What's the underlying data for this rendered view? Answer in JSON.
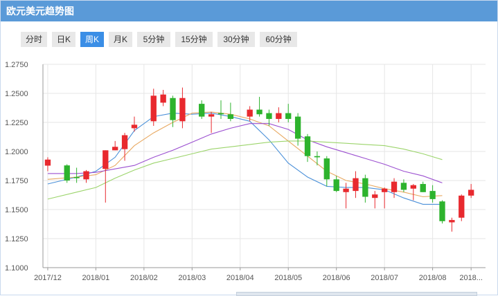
{
  "header": {
    "title": "欧元美元趋势图"
  },
  "tabs": [
    {
      "id": "fenshi",
      "label": "分时",
      "active": false
    },
    {
      "id": "rik",
      "label": "日K",
      "active": false
    },
    {
      "id": "zhouk",
      "label": "周K",
      "active": true
    },
    {
      "id": "yuek",
      "label": "月K",
      "active": false
    },
    {
      "id": "5min",
      "label": "5分钟",
      "active": false
    },
    {
      "id": "15min",
      "label": "15分钟",
      "active": false
    },
    {
      "id": "30min",
      "label": "30分钟",
      "active": false
    },
    {
      "id": "60min",
      "label": "60分钟",
      "active": false
    }
  ],
  "colors": {
    "up": "#e8292e",
    "down": "#2db32d",
    "ma5": "#4a90d9",
    "ma10": "#e8a860",
    "ma20": "#9b4fd0",
    "ma30": "#9bd46a",
    "grid": "#e6e6e6",
    "axis": "#999999"
  },
  "chart_data": {
    "type": "candlestick",
    "title": "",
    "ylim": [
      1.1,
      1.275
    ],
    "y_ticks": [
      "1.2750",
      "1.2500",
      "1.2250",
      "1.2000",
      "1.1750",
      "1.1500",
      "1.1250",
      "1.1000"
    ],
    "x_labels": [
      "2017/12",
      "2018/01",
      "2018/02",
      "2018/03",
      "2018/04",
      "2018/05",
      "2018/06",
      "2018/07",
      "2018/08",
      "2018..."
    ],
    "x_label_index": [
      0,
      5,
      10,
      15,
      20,
      25,
      30,
      35,
      40,
      44
    ],
    "n_slots": 46,
    "candles": [
      {
        "o": 1.1878,
        "h": 1.195,
        "l": 1.183,
        "c": 1.193
      },
      {
        "o": 1.188,
        "h": 1.189,
        "l": 1.173,
        "c": 1.175
      },
      {
        "o": 1.178,
        "h": 1.186,
        "l": 1.173,
        "c": 1.177
      },
      {
        "o": 1.176,
        "h": 1.184,
        "l": 1.173,
        "c": 1.183
      },
      {
        "o": 1.185,
        "h": 1.201,
        "l": 1.156,
        "c": 1.201
      },
      {
        "o": 1.201,
        "h": 1.209,
        "l": 1.201,
        "c": 1.204
      },
      {
        "o": 1.202,
        "h": 1.216,
        "l": 1.192,
        "c": 1.214
      },
      {
        "o": 1.22,
        "h": 1.23,
        "l": 1.217,
        "c": 1.223
      },
      {
        "o": 1.226,
        "h": 1.254,
        "l": 1.222,
        "c": 1.248
      },
      {
        "o": 1.242,
        "h": 1.253,
        "l": 1.239,
        "c": 1.249
      },
      {
        "o": 1.246,
        "h": 1.248,
        "l": 1.221,
        "c": 1.227
      },
      {
        "o": 1.226,
        "h": 1.255,
        "l": 1.22,
        "c": 1.246
      },
      {
        "o": 1.241,
        "h": 1.244,
        "l": 1.228,
        "c": 1.23
      },
      {
        "o": 1.23,
        "h": 1.234,
        "l": 1.216,
        "c": 1.232
      },
      {
        "o": 1.233,
        "h": 1.244,
        "l": 1.228,
        "c": 1.232
      },
      {
        "o": 1.232,
        "h": 1.242,
        "l": 1.226,
        "c": 1.228
      },
      {
        "o": 1.23,
        "h": 1.239,
        "l": 1.226,
        "c": 1.236
      },
      {
        "o": 1.236,
        "h": 1.247,
        "l": 1.23,
        "c": 1.232
      },
      {
        "o": 1.233,
        "h": 1.236,
        "l": 1.222,
        "c": 1.228
      },
      {
        "o": 1.228,
        "h": 1.238,
        "l": 1.225,
        "c": 1.233
      },
      {
        "o": 1.233,
        "h": 1.241,
        "l": 1.225,
        "c": 1.228
      },
      {
        "o": 1.23,
        "h": 1.233,
        "l": 1.205,
        "c": 1.211
      },
      {
        "o": 1.213,
        "h": 1.215,
        "l": 1.191,
        "c": 1.196
      },
      {
        "o": 1.196,
        "h": 1.2,
        "l": 1.188,
        "c": 1.195
      },
      {
        "o": 1.194,
        "h": 1.196,
        "l": 1.17,
        "c": 1.176
      },
      {
        "o": 1.176,
        "h": 1.179,
        "l": 1.165,
        "c": 1.166
      },
      {
        "o": 1.165,
        "h": 1.173,
        "l": 1.151,
        "c": 1.168
      },
      {
        "o": 1.166,
        "h": 1.183,
        "l": 1.16,
        "c": 1.177
      },
      {
        "o": 1.177,
        "h": 1.18,
        "l": 1.156,
        "c": 1.161
      },
      {
        "o": 1.16,
        "h": 1.166,
        "l": 1.151,
        "c": 1.163
      },
      {
        "o": 1.165,
        "h": 1.169,
        "l": 1.151,
        "c": 1.168
      },
      {
        "o": 1.165,
        "h": 1.177,
        "l": 1.16,
        "c": 1.174
      },
      {
        "o": 1.173,
        "h": 1.176,
        "l": 1.165,
        "c": 1.167
      },
      {
        "o": 1.168,
        "h": 1.172,
        "l": 1.158,
        "c": 1.171
      },
      {
        "o": 1.172,
        "h": 1.174,
        "l": 1.165,
        "c": 1.165
      },
      {
        "o": 1.166,
        "h": 1.171,
        "l": 1.156,
        "c": 1.159
      },
      {
        "o": 1.157,
        "h": 1.158,
        "l": 1.138,
        "c": 1.14
      },
      {
        "o": 1.139,
        "h": 1.143,
        "l": 1.131,
        "c": 1.141
      },
      {
        "o": 1.143,
        "h": 1.163,
        "l": 1.14,
        "c": 1.162
      },
      {
        "o": 1.162,
        "h": 1.172,
        "l": 1.16,
        "c": 1.167
      }
    ],
    "candle_slots": [
      0,
      2,
      3,
      4,
      6,
      7,
      8,
      9,
      11,
      12,
      13,
      14,
      16,
      17,
      18,
      19,
      21,
      22,
      23,
      24,
      25,
      26,
      27,
      28,
      29,
      30,
      31,
      32,
      33,
      34,
      35,
      36,
      37,
      38,
      39,
      40,
      41,
      42,
      43,
      44
    ],
    "series": [
      {
        "key": "ma5",
        "values": [
          [
            0,
            1.172
          ],
          [
            3,
            1.178
          ],
          [
            5,
            1.183
          ],
          [
            7,
            1.195
          ],
          [
            9,
            1.218
          ],
          [
            11,
            1.23
          ],
          [
            13,
            1.233
          ],
          [
            15,
            1.232
          ],
          [
            17,
            1.233
          ],
          [
            19,
            1.23
          ],
          [
            21,
            1.226
          ],
          [
            23,
            1.21
          ],
          [
            25,
            1.19
          ],
          [
            27,
            1.178
          ],
          [
            29,
            1.17
          ],
          [
            31,
            1.169
          ],
          [
            33,
            1.169
          ],
          [
            35,
            1.167
          ],
          [
            37,
            1.16
          ],
          [
            39,
            1.1545
          ],
          [
            41,
            1.1545
          ]
        ]
      },
      {
        "key": "ma10",
        "values": [
          [
            0,
            1.176
          ],
          [
            3,
            1.178
          ],
          [
            5,
            1.18
          ],
          [
            7,
            1.188
          ],
          [
            9,
            1.205
          ],
          [
            11,
            1.216
          ],
          [
            13,
            1.225
          ],
          [
            15,
            1.233
          ],
          [
            17,
            1.234
          ],
          [
            19,
            1.232
          ],
          [
            21,
            1.228
          ],
          [
            23,
            1.222
          ],
          [
            25,
            1.209
          ],
          [
            27,
            1.196
          ],
          [
            29,
            1.183
          ],
          [
            31,
            1.175
          ],
          [
            33,
            1.172
          ],
          [
            35,
            1.168
          ],
          [
            37,
            1.165
          ],
          [
            39,
            1.161
          ],
          [
            41,
            1.162
          ]
        ]
      },
      {
        "key": "ma20",
        "values": [
          [
            0,
            1.181
          ],
          [
            3,
            1.181
          ],
          [
            5,
            1.182
          ],
          [
            7,
            1.185
          ],
          [
            9,
            1.188
          ],
          [
            11,
            1.195
          ],
          [
            13,
            1.201
          ],
          [
            15,
            1.208
          ],
          [
            17,
            1.215
          ],
          [
            19,
            1.22
          ],
          [
            21,
            1.224
          ],
          [
            23,
            1.224
          ],
          [
            25,
            1.219
          ],
          [
            27,
            1.21
          ],
          [
            29,
            1.204
          ],
          [
            31,
            1.199
          ],
          [
            33,
            1.194
          ],
          [
            35,
            1.189
          ],
          [
            37,
            1.183
          ],
          [
            39,
            1.179
          ],
          [
            41,
            1.173
          ]
        ]
      },
      {
        "key": "ma30",
        "values": [
          [
            0,
            1.159
          ],
          [
            3,
            1.165
          ],
          [
            5,
            1.169
          ],
          [
            7,
            1.177
          ],
          [
            9,
            1.184
          ],
          [
            11,
            1.19
          ],
          [
            13,
            1.194
          ],
          [
            15,
            1.198
          ],
          [
            17,
            1.202
          ],
          [
            19,
            1.204
          ],
          [
            21,
            1.206
          ],
          [
            23,
            1.208
          ],
          [
            25,
            1.209
          ],
          [
            27,
            1.209
          ],
          [
            29,
            1.208
          ],
          [
            31,
            1.207
          ],
          [
            33,
            1.206
          ],
          [
            35,
            1.205
          ],
          [
            37,
            1.202
          ],
          [
            39,
            1.198
          ],
          [
            41,
            1.193
          ]
        ]
      }
    ]
  }
}
